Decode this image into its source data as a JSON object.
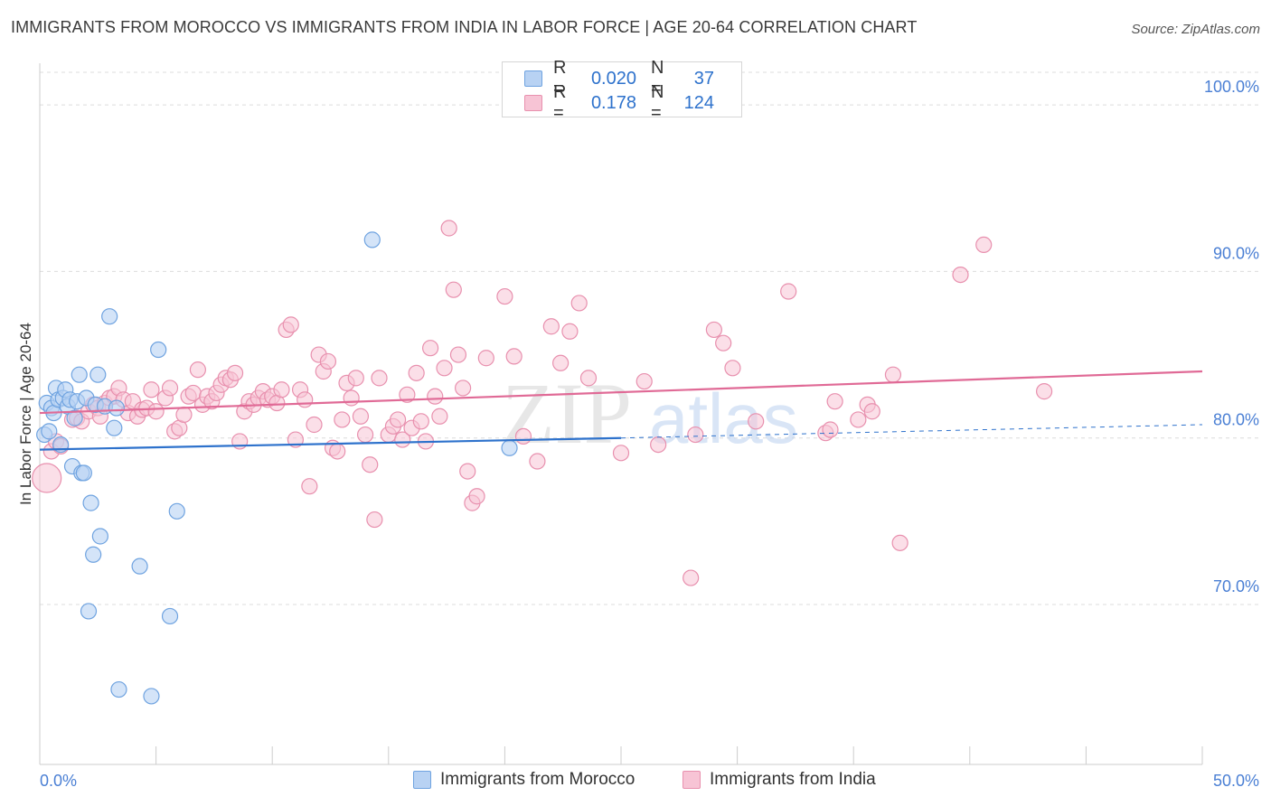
{
  "title": "IMMIGRANTS FROM MOROCCO VS IMMIGRANTS FROM INDIA IN LABOR FORCE | AGE 20-64 CORRELATION CHART",
  "source": "Source: ZipAtlas.com",
  "watermark": {
    "zip": "ZIP",
    "atlas": "atlas"
  },
  "colors": {
    "morocco": "#6fa3e0",
    "morocco_fill": "#b8d2f3",
    "morocco_line": "#2e72cc",
    "india": "#e890ae",
    "india_fill": "#f7c4d5",
    "india_line": "#e06a96",
    "axis_text": "#4a7fd4",
    "grid": "#dcdcdc"
  },
  "legend": {
    "morocco": {
      "r_label": "R =",
      "r_value": "0.020",
      "n_label": "N =",
      "n_value": "37"
    },
    "india": {
      "r_label": "R =",
      "r_value": "0.178",
      "n_label": "N =",
      "n_value": "124"
    }
  },
  "bottom_legend": {
    "morocco": "Immigrants from Morocco",
    "india": "Immigrants from India"
  },
  "chart_data": {
    "type": "scatter",
    "title": "IMMIGRANTS FROM MOROCCO VS IMMIGRANTS FROM INDIA IN LABOR FORCE | AGE 20-64 CORRELATION CHART",
    "xlabel": "",
    "ylabel": "In Labor Force | Age 20-64",
    "xlim": [
      0,
      50
    ],
    "ylim": [
      60.4,
      102.5
    ],
    "x_tick_labels": [
      "0.0%",
      "50.0%"
    ],
    "y_ticks": [
      70,
      80,
      90,
      100
    ],
    "y_tick_labels": [
      "70.0%",
      "80.0%",
      "90.0%",
      "100.0%"
    ],
    "series": [
      {
        "name": "Immigrants from Morocco",
        "R": 0.02,
        "N": 37,
        "trend": {
          "x": [
            0,
            25
          ],
          "y": [
            79.3,
            80.0
          ],
          "dashed_to": [
            50,
            80.8
          ]
        },
        "points": [
          [
            0.2,
            80.2
          ],
          [
            0.3,
            82.1
          ],
          [
            0.4,
            80.4
          ],
          [
            0.5,
            81.8
          ],
          [
            0.6,
            81.5
          ],
          [
            0.7,
            83.0
          ],
          [
            0.8,
            82.3
          ],
          [
            0.9,
            79.6
          ],
          [
            1.0,
            82.4
          ],
          [
            1.1,
            82.9
          ],
          [
            1.2,
            81.9
          ],
          [
            1.3,
            82.3
          ],
          [
            1.4,
            78.3
          ],
          [
            1.5,
            81.2
          ],
          [
            1.6,
            82.2
          ],
          [
            1.7,
            83.8
          ],
          [
            1.8,
            77.9
          ],
          [
            1.9,
            77.9
          ],
          [
            2.0,
            82.4
          ],
          [
            2.1,
            69.6
          ],
          [
            2.2,
            76.1
          ],
          [
            2.3,
            73.0
          ],
          [
            2.4,
            82.0
          ],
          [
            2.5,
            83.8
          ],
          [
            2.6,
            74.1
          ],
          [
            2.8,
            81.9
          ],
          [
            3.0,
            87.3
          ],
          [
            3.2,
            80.6
          ],
          [
            3.3,
            81.8
          ],
          [
            3.4,
            64.9
          ],
          [
            4.3,
            72.3
          ],
          [
            4.8,
            64.5
          ],
          [
            5.1,
            85.3
          ],
          [
            5.6,
            69.3
          ],
          [
            5.9,
            75.6
          ],
          [
            14.3,
            91.9
          ],
          [
            20.2,
            79.4
          ]
        ]
      },
      {
        "name": "Immigrants from India",
        "R": 0.178,
        "N": 124,
        "trend": {
          "x": [
            0,
            50
          ],
          "y": [
            81.5,
            84.0
          ]
        },
        "points": [
          [
            0.3,
            77.6
          ],
          [
            0.5,
            79.2
          ],
          [
            0.7,
            79.8
          ],
          [
            0.9,
            79.5
          ],
          [
            1.4,
            81.1
          ],
          [
            1.6,
            81.2
          ],
          [
            1.8,
            81.0
          ],
          [
            2.1,
            81.6
          ],
          [
            2.3,
            82.0
          ],
          [
            2.5,
            81.8
          ],
          [
            2.6,
            81.3
          ],
          [
            2.8,
            82.1
          ],
          [
            3.0,
            82.4
          ],
          [
            3.2,
            82.5
          ],
          [
            3.4,
            83.0
          ],
          [
            3.6,
            82.3
          ],
          [
            3.8,
            81.5
          ],
          [
            4.0,
            82.2
          ],
          [
            4.2,
            81.3
          ],
          [
            4.4,
            81.7
          ],
          [
            4.6,
            81.8
          ],
          [
            4.8,
            82.9
          ],
          [
            5.0,
            81.6
          ],
          [
            5.4,
            82.4
          ],
          [
            5.6,
            83.0
          ],
          [
            5.8,
            80.4
          ],
          [
            6.0,
            80.6
          ],
          [
            6.2,
            81.4
          ],
          [
            6.4,
            82.5
          ],
          [
            6.6,
            82.7
          ],
          [
            6.8,
            84.1
          ],
          [
            7.0,
            82.0
          ],
          [
            7.2,
            82.5
          ],
          [
            7.4,
            82.2
          ],
          [
            7.6,
            82.7
          ],
          [
            7.8,
            83.2
          ],
          [
            8.0,
            83.6
          ],
          [
            8.2,
            83.5
          ],
          [
            8.4,
            83.9
          ],
          [
            8.6,
            79.8
          ],
          [
            8.8,
            81.6
          ],
          [
            9.0,
            82.2
          ],
          [
            9.2,
            82.0
          ],
          [
            9.4,
            82.4
          ],
          [
            9.6,
            82.8
          ],
          [
            9.8,
            82.3
          ],
          [
            10.0,
            82.5
          ],
          [
            10.2,
            82.1
          ],
          [
            10.4,
            82.9
          ],
          [
            10.6,
            86.5
          ],
          [
            10.8,
            86.8
          ],
          [
            11.0,
            79.9
          ],
          [
            11.2,
            82.9
          ],
          [
            11.4,
            82.3
          ],
          [
            11.6,
            77.1
          ],
          [
            11.8,
            80.8
          ],
          [
            12.0,
            85.0
          ],
          [
            12.2,
            84.0
          ],
          [
            12.4,
            84.6
          ],
          [
            12.6,
            79.4
          ],
          [
            12.8,
            79.2
          ],
          [
            13.0,
            81.1
          ],
          [
            13.2,
            83.3
          ],
          [
            13.4,
            82.4
          ],
          [
            13.6,
            83.6
          ],
          [
            13.8,
            81.3
          ],
          [
            14.0,
            80.2
          ],
          [
            14.2,
            78.4
          ],
          [
            14.4,
            75.1
          ],
          [
            14.6,
            83.6
          ],
          [
            15.0,
            80.2
          ],
          [
            15.2,
            80.7
          ],
          [
            15.4,
            81.1
          ],
          [
            15.6,
            79.9
          ],
          [
            15.8,
            82.6
          ],
          [
            16.0,
            80.6
          ],
          [
            16.2,
            83.9
          ],
          [
            16.4,
            81.0
          ],
          [
            16.6,
            79.8
          ],
          [
            16.8,
            85.4
          ],
          [
            17.0,
            82.5
          ],
          [
            17.2,
            81.3
          ],
          [
            17.4,
            84.2
          ],
          [
            17.6,
            92.6
          ],
          [
            17.8,
            88.9
          ],
          [
            18.0,
            85.0
          ],
          [
            18.2,
            83.0
          ],
          [
            18.4,
            78.0
          ],
          [
            18.6,
            76.1
          ],
          [
            18.8,
            76.5
          ],
          [
            19.2,
            84.8
          ],
          [
            20.0,
            88.5
          ],
          [
            20.4,
            84.9
          ],
          [
            20.8,
            80.1
          ],
          [
            21.4,
            78.6
          ],
          [
            22.0,
            86.7
          ],
          [
            22.4,
            84.5
          ],
          [
            22.8,
            86.4
          ],
          [
            23.2,
            88.1
          ],
          [
            23.6,
            83.6
          ],
          [
            25.0,
            79.1
          ],
          [
            26.0,
            83.4
          ],
          [
            26.6,
            79.6
          ],
          [
            28.0,
            71.6
          ],
          [
            28.2,
            80.2
          ],
          [
            29.0,
            86.5
          ],
          [
            29.4,
            85.7
          ],
          [
            29.8,
            84.2
          ],
          [
            30.8,
            81.0
          ],
          [
            32.2,
            88.8
          ],
          [
            33.8,
            80.3
          ],
          [
            34.0,
            80.5
          ],
          [
            34.2,
            82.2
          ],
          [
            35.2,
            81.1
          ],
          [
            35.6,
            82.0
          ],
          [
            35.8,
            81.6
          ],
          [
            36.7,
            83.8
          ],
          [
            37.0,
            73.7
          ],
          [
            39.6,
            89.8
          ],
          [
            40.6,
            91.6
          ],
          [
            43.2,
            82.8
          ]
        ]
      }
    ]
  }
}
